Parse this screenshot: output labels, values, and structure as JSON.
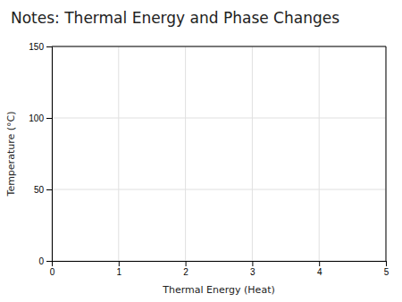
{
  "chart_data": {
    "type": "line",
    "title": "Notes: Thermal Energy and Phase Changes",
    "xlabel": "Thermal Energy (Heat)",
    "ylabel": "Temperature (°C)",
    "xlim": [
      0,
      5
    ],
    "ylim": [
      0,
      150
    ],
    "xticks": [
      0,
      1,
      2,
      3,
      4,
      5
    ],
    "yticks": [
      0,
      50,
      100,
      150
    ],
    "grid": true
  }
}
